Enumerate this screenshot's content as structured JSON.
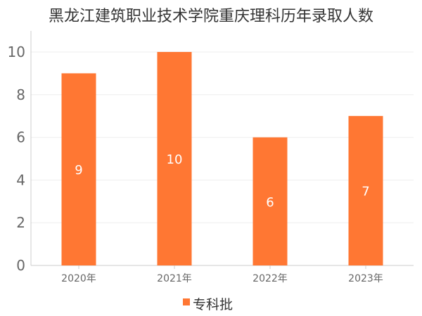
{
  "chart_data": {
    "type": "bar",
    "title": "黑龙江建筑职业技术学院重庆理科历年录取人数",
    "categories": [
      "2020年",
      "2021年",
      "2022年",
      "2023年"
    ],
    "series": [
      {
        "name": "专科批",
        "values": [
          9,
          10,
          6,
          7
        ]
      }
    ],
    "ylim": [
      0,
      10
    ],
    "yticks": [
      0,
      2,
      4,
      6,
      8,
      10
    ],
    "grid": true,
    "legend": "bottom",
    "data_labels": true,
    "colors": {
      "bar": "#FF7733",
      "grid": "#eeeeee",
      "axis": "#cccccc"
    }
  }
}
